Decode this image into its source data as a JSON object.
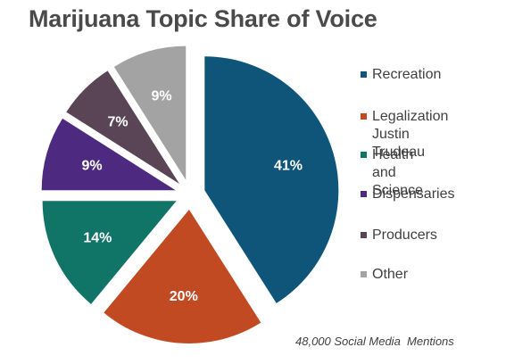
{
  "chart_data": {
    "type": "pie",
    "title": "Marijuana Topic Share of Voice",
    "slices": [
      {
        "name": "Recreation",
        "value": 41,
        "label": "41%",
        "color": "#0f5579"
      },
      {
        "name": "Legalization\nJustin Trudeau",
        "value": 20,
        "label": "20%",
        "color": "#c14a22"
      },
      {
        "name": "Health and\nScience",
        "value": 14,
        "label": "14%",
        "color": "#107467"
      },
      {
        "name": "Dispensaries",
        "value": 9,
        "label": "9%",
        "color": "#4d2a80"
      },
      {
        "name": "Producers",
        "value": 7,
        "label": "7%",
        "color": "#5a4556"
      },
      {
        "name": "Other",
        "value": 9,
        "label": "9%",
        "color": "#a3a3a3"
      }
    ],
    "exploded": true,
    "legend_position": "right",
    "footnote": "48,000 Social Media  Mentions"
  }
}
